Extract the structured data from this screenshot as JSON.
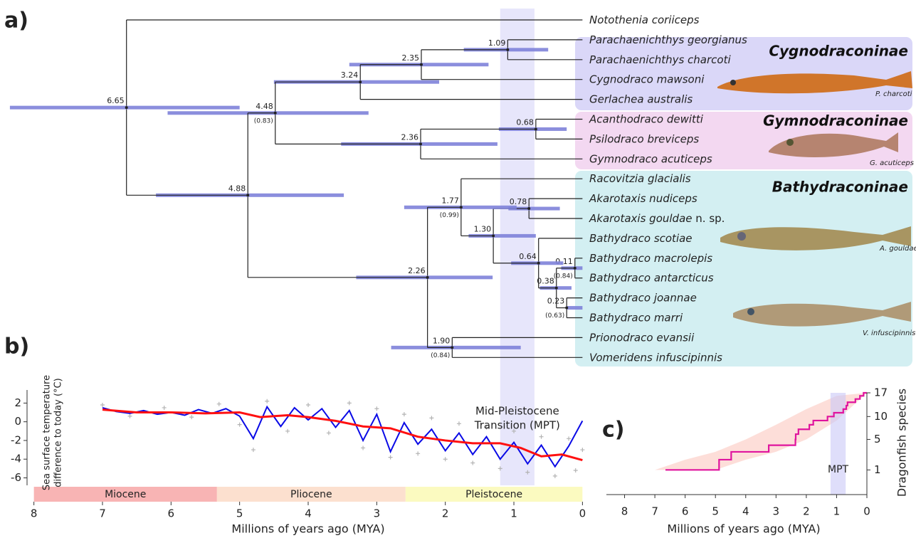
{
  "panel_labels": [
    "a)",
    "b)",
    "c)"
  ],
  "mpt_band": [
    1.2,
    0.7
  ],
  "tree": {
    "bar_color": "#7e82d9",
    "clades": [
      {
        "name": "Cygnodraconinae",
        "caption": "P. charcoti",
        "color": "#dad7f8"
      },
      {
        "name": "Gymnodraconinae",
        "caption": "G. acuticeps",
        "color": "#f3d8f1"
      },
      {
        "name": "Bathydraconinae",
        "caption": "A. gouldae",
        "caption2": "V. infuscipinnis",
        "color": "#d3eff2"
      }
    ],
    "root": {
      "age": 6.65,
      "hpd": [
        8.35,
        5.0
      ],
      "children": [
        {
          "tip": "Notothenia coriiceps"
        },
        {
          "age": 4.88,
          "hpd": [
            6.22,
            3.48
          ],
          "children": [
            {
              "age": 4.48,
              "support": "(0.83)",
              "hpd": [
                6.05,
                3.12
              ],
              "children": [
                {
                  "age": 3.24,
                  "hpd": [
                    4.5,
                    2.09
                  ],
                  "children": [
                    {
                      "age": 2.35,
                      "hpd": [
                        3.4,
                        1.37
                      ],
                      "children": [
                        {
                          "age": 1.09,
                          "hpd": [
                            1.73,
                            0.5
                          ],
                          "children": [
                            {
                              "tip": "Parachaenichthys georgianus"
                            },
                            {
                              "tip": "Parachaenichthys charcoti"
                            }
                          ]
                        },
                        {
                          "tip": "Cygnodraco mawsoni"
                        }
                      ]
                    },
                    {
                      "tip": "Gerlachea australis"
                    }
                  ]
                },
                {
                  "age": 2.36,
                  "hpd": [
                    3.52,
                    1.24
                  ],
                  "children": [
                    {
                      "age": 0.68,
                      "hpd": [
                        1.22,
                        0.23
                      ],
                      "children": [
                        {
                          "tip": "Acanthodraco dewitti"
                        },
                        {
                          "tip": "Psilodraco breviceps"
                        }
                      ]
                    },
                    {
                      "tip": "Gymnodraco acuticeps"
                    }
                  ]
                }
              ]
            },
            {
              "age": 2.26,
              "hpd": [
                3.3,
                1.31
              ],
              "children": [
                {
                  "age": 1.77,
                  "support": "(0.99)",
                  "hpd": [
                    2.6,
                    0.96
                  ],
                  "children": [
                    {
                      "tip": "Racovitzia glacialis"
                    },
                    {
                      "age": 1.3,
                      "age_label": "1.30",
                      "hpd": [
                        1.66,
                        0.68
                      ],
                      "children": [
                        {
                          "age": 0.78,
                          "hpd": [
                            1.08,
                            0.33
                          ],
                          "children": [
                            {
                              "tip": "Akarotaxis nudiceps"
                            },
                            {
                              "tip": "Akarotaxis gouldae",
                              "note": "n. sp."
                            }
                          ]
                        },
                        {
                          "age": 0.64,
                          "hpd": [
                            1.04,
                            0.28
                          ],
                          "children": [
                            {
                              "tip": "Bathydraco scotiae"
                            },
                            {
                              "age": 0.38,
                              "hpd": [
                                0.62,
                                0.16
                              ],
                              "children": [
                                {
                                  "age": 0.11,
                                  "support": "(0.84)",
                                  "hpd": [
                                    0.31,
                                    0
                                  ],
                                  "children": [
                                    {
                                      "tip": "Bathydraco macrolepis"
                                    },
                                    {
                                      "tip": "Bathydraco antarcticus"
                                    }
                                  ]
                                },
                                {
                                  "age": 0.23,
                                  "support": "(0.63)",
                                  "hpd": [
                                    0.23,
                                    0
                                  ],
                                  "children": [
                                    {
                                      "tip": "Bathydraco joannae"
                                    },
                                    {
                                      "tip": "Bathydraco marri"
                                    }
                                  ]
                                }
                              ]
                            }
                          ]
                        }
                      ]
                    }
                  ]
                },
                {
                  "age": 1.9,
                  "age_label": "1.90",
                  "support": "(0.84)",
                  "hpd": [
                    2.79,
                    0.9
                  ],
                  "children": [
                    {
                      "tip": "Prionodraco evansii"
                    },
                    {
                      "tip": "Vomeridens infuscipinnis"
                    }
                  ]
                }
              ]
            }
          ]
        }
      ]
    }
  },
  "chart_data": [
    {
      "type": "line",
      "ylabel": [
        "Sea surface temperature",
        "difference to today (°C)"
      ],
      "xlabel": "Millions of years ago (MYA)",
      "annotation": [
        "Mid-Pleistocene",
        "Transition (MPT)"
      ],
      "xlim": [
        8.1,
        -0.1
      ],
      "ylim": [
        -6.8,
        3.4
      ],
      "xticks": [
        8,
        7,
        6,
        5,
        4,
        3,
        2,
        1,
        0
      ],
      "yticks": [
        2,
        0,
        -2,
        -4,
        -6
      ],
      "epochs": [
        {
          "name": "Miocene",
          "from": 8,
          "to": 5.33,
          "color": "#f8b4b4"
        },
        {
          "name": "Pliocene",
          "from": 5.33,
          "to": 2.58,
          "color": "#fce0cf"
        },
        {
          "name": "Pleistocene",
          "from": 2.58,
          "to": 0,
          "color": "#fbfac0"
        }
      ],
      "scatter": {
        "color": "#b3b3b3",
        "x": [
          7.0,
          6.6,
          6.1,
          5.7,
          5.3,
          5.0,
          4.8,
          4.6,
          4.3,
          4.0,
          3.7,
          3.4,
          3.2,
          3.0,
          2.8,
          2.6,
          2.4,
          2.2,
          2.0,
          1.8,
          1.6,
          1.4,
          1.2,
          1.0,
          0.8,
          0.6,
          0.4,
          0.2,
          0.1,
          0.0
        ],
        "values": [
          1.8,
          0.6,
          1.5,
          0.5,
          1.9,
          -0.3,
          -3.0,
          2.2,
          -1.0,
          1.8,
          -1.2,
          2.0,
          -2.8,
          1.4,
          -3.8,
          0.8,
          -3.4,
          0.4,
          -4.0,
          -0.2,
          -4.4,
          -0.6,
          -5.0,
          -1.0,
          -5.4,
          -1.6,
          -5.8,
          -1.8,
          -5.2,
          -3.0
        ]
      },
      "series": [
        {
          "color": "#0a0ae6",
          "x": [
            7.0,
            6.8,
            6.6,
            6.4,
            6.2,
            6.0,
            5.8,
            5.6,
            5.4,
            5.2,
            5.0,
            4.8,
            4.6,
            4.4,
            4.2,
            4.0,
            3.8,
            3.6,
            3.4,
            3.2,
            3.0,
            2.8,
            2.6,
            2.4,
            2.2,
            2.0,
            1.8,
            1.6,
            1.4,
            1.2,
            1.0,
            0.8,
            0.6,
            0.4,
            0.2,
            0.0
          ],
          "values": [
            1.5,
            1.1,
            0.9,
            1.2,
            0.8,
            1.0,
            0.7,
            1.3,
            0.9,
            1.4,
            0.6,
            -1.8,
            1.6,
            -0.5,
            1.5,
            0.2,
            1.4,
            -0.6,
            1.2,
            -2.0,
            0.8,
            -3.2,
            -0.1,
            -2.4,
            -0.8,
            -3.1,
            -1.2,
            -3.5,
            -1.6,
            -4.0,
            -2.2,
            -4.5,
            -2.5,
            -4.8,
            -2.6,
            0.1
          ]
        },
        {
          "color": "#ff1010",
          "x": [
            7.0,
            6.5,
            6.0,
            5.5,
            5.0,
            4.7,
            4.3,
            4.0,
            3.6,
            3.2,
            2.8,
            2.4,
            2.0,
            1.6,
            1.2,
            0.9,
            0.6,
            0.3,
            0.0
          ],
          "values": [
            1.3,
            1.0,
            1.0,
            0.9,
            1.0,
            0.5,
            0.7,
            0.5,
            0.1,
            -0.5,
            -0.7,
            -1.6,
            -2.0,
            -2.3,
            -2.3,
            -2.8,
            -3.7,
            -3.5,
            -4.1
          ]
        }
      ]
    },
    {
      "type": "step",
      "ylabel": "Dragonfish species",
      "xlabel": "Millions of years ago (MYA)",
      "xlim": [
        8.6,
        0
      ],
      "ylim": [
        0,
        17
      ],
      "yscale": "sqrt",
      "xticks": [
        8,
        7,
        6,
        5,
        4,
        3,
        2,
        1,
        0
      ],
      "yticks": [
        1,
        5,
        10,
        17
      ],
      "color": "#e0149e",
      "x": [
        6.65,
        4.88,
        4.48,
        3.24,
        2.36,
        2.35,
        2.26,
        1.9,
        1.77,
        1.3,
        1.09,
        0.78,
        0.68,
        0.64,
        0.38,
        0.23,
        0.11,
        0
      ],
      "values": [
        1,
        2,
        3,
        4,
        5,
        6,
        7,
        8,
        9,
        10,
        11,
        12,
        13,
        14,
        15,
        16,
        17,
        17
      ],
      "band": {
        "color": "#fcd6d0",
        "x": [
          8.6,
          7,
          6,
          5,
          4,
          3,
          2,
          1,
          0
        ],
        "lower": [
          1,
          1,
          1,
          1,
          2,
          3,
          5,
          9,
          17
        ],
        "upper": [
          1,
          1,
          2,
          3,
          5,
          8,
          12,
          16,
          17
        ]
      },
      "mpt": {
        "range": [
          1.2,
          0.7
        ],
        "label": "MPT"
      }
    }
  ]
}
